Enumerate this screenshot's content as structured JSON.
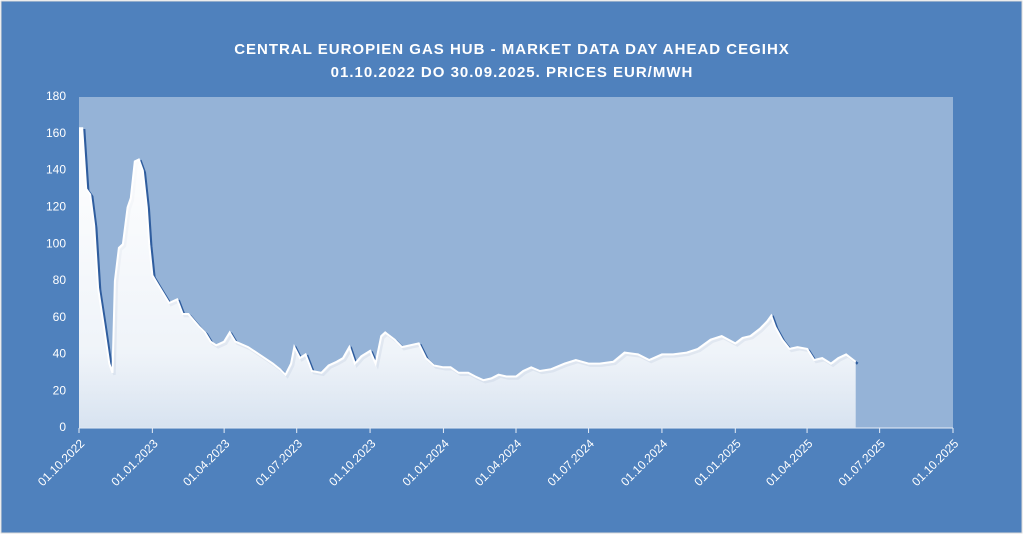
{
  "chart_data": {
    "type": "area",
    "title": [
      "CENTRAL EUROPIEN GAS HUB - MARKET DATA DAY AHEAD CEGIHX",
      "01.10.2022 DO 30.09.2025. PRICES EUR/MWH"
    ],
    "x": [
      "01.10.2022",
      "05.10.2022",
      "10.10.2022",
      "15.10.2022",
      "20.10.2022",
      "25.10.2022",
      "01.11.2022",
      "08.11.2022",
      "12.11.2022",
      "15.11.2022",
      "20.11.2022",
      "25.11.2022",
      "01.12.2022",
      "05.12.2022",
      "10.12.2022",
      "15.12.2022",
      "20.12.2022",
      "25.12.2022",
      "28.12.2022",
      "01.01.2023",
      "08.01.2023",
      "15.01.2023",
      "22.01.2023",
      "01.02.2023",
      "08.02.2023",
      "15.02.2023",
      "01.03.2023",
      "08.03.2023",
      "15.03.2023",
      "22.03.2023",
      "01.04.2023",
      "08.04.2023",
      "15.04.2023",
      "01.05.2023",
      "15.05.2023",
      "01.06.2023",
      "10.06.2023",
      "17.06.2023",
      "24.06.2023",
      "28.06.2023",
      "05.07.2023",
      "12.07.2023",
      "20.07.2023",
      "01.08.2023",
      "10.08.2023",
      "20.08.2023",
      "28.08.2023",
      "05.09.2023",
      "12.09.2023",
      "20.09.2023",
      "01.10.2023",
      "08.10.2023",
      "15.10.2023",
      "20.10.2023",
      "01.11.2023",
      "10.11.2023",
      "20.11.2023",
      "01.12.2023",
      "10.12.2023",
      "20.12.2023",
      "01.01.2024",
      "10.01.2024",
      "20.01.2024",
      "01.02.2024",
      "10.02.2024",
      "20.02.2024",
      "01.03.2024",
      "10.03.2024",
      "20.03.2024",
      "01.04.2024",
      "10.04.2024",
      "20.04.2024",
      "01.05.2024",
      "15.05.2024",
      "01.06.2024",
      "15.06.2024",
      "01.07.2024",
      "15.07.2024",
      "01.08.2024",
      "15.08.2024",
      "01.09.2024",
      "15.09.2024",
      "01.10.2024",
      "15.10.2024",
      "01.11.2024",
      "15.11.2024",
      "01.12.2024",
      "15.12.2024",
      "01.01.2025",
      "10.01.2025",
      "20.01.2025",
      "01.02.2025",
      "10.02.2025",
      "15.02.2025",
      "20.02.2025",
      "01.03.2025",
      "10.03.2025",
      "20.03.2025",
      "01.04.2025",
      "10.04.2025",
      "20.04.2025",
      "01.05.2025",
      "10.05.2025",
      "20.05.2025",
      "01.06.2025"
    ],
    "values": [
      163,
      163,
      130,
      127,
      110,
      76,
      56,
      35,
      30,
      80,
      98,
      100,
      120,
      125,
      145,
      146,
      140,
      120,
      100,
      83,
      78,
      73,
      68,
      70,
      62,
      62,
      55,
      52,
      47,
      45,
      47,
      52,
      47,
      44,
      40,
      35,
      32,
      29,
      35,
      44,
      38,
      40,
      31,
      30,
      34,
      36,
      38,
      44,
      35,
      39,
      42,
      35,
      50,
      52,
      48,
      44,
      45,
      46,
      38,
      34,
      33,
      33,
      30,
      30,
      28,
      26,
      27,
      29,
      28,
      28,
      31,
      33,
      31,
      32,
      35,
      37,
      35,
      35,
      36,
      41,
      40,
      37,
      40,
      40,
      41,
      43,
      48,
      50,
      46,
      49,
      50,
      54,
      58,
      61,
      55,
      48,
      43,
      44,
      43,
      37,
      38,
      35,
      38,
      40,
      36
    ],
    "color": "#2f5d9e",
    "xlim": [
      "01.10.2022",
      "01.10.2025"
    ],
    "xticks": [
      "01.10.2022",
      "01.01.2023",
      "01.04.2023",
      "01.07.2023",
      "01.10.2023",
      "01.01.2024",
      "01.04.2024",
      "01.07.2024",
      "01.10.2024",
      "01.01.2025",
      "01.04.2025",
      "01.07.2025",
      "01.10.2025"
    ],
    "ylim": [
      0,
      180
    ],
    "yticks": [
      0,
      20,
      40,
      60,
      80,
      100,
      120,
      140,
      160,
      180
    ],
    "grid": false
  }
}
